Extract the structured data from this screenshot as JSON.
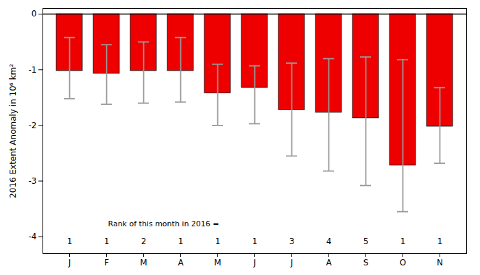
{
  "chart_data": {
    "type": "bar",
    "categories": [
      "J",
      "F",
      "M",
      "A",
      "M",
      "J",
      "J",
      "A",
      "S",
      "O",
      "N"
    ],
    "values": [
      -1.02,
      -1.07,
      -1.02,
      -1.02,
      -1.42,
      -1.32,
      -1.72,
      -1.77,
      -1.87,
      -2.72,
      -2.02
    ],
    "error_upper": [
      -0.42,
      -0.55,
      -0.5,
      -0.42,
      -0.9,
      -0.93,
      -0.88,
      -0.8,
      -0.77,
      -0.82,
      -1.32
    ],
    "error_lower": [
      -1.52,
      -1.62,
      -1.6,
      -1.58,
      -2.0,
      -1.97,
      -2.55,
      -2.82,
      -3.08,
      -3.55,
      -2.68
    ],
    "color": "#ee0000",
    "annotation": "Rank of this month in 2016 =",
    "ranks": [
      1,
      1,
      2,
      1,
      1,
      1,
      3,
      4,
      5,
      1,
      1
    ],
    "ylabel": "2016 Extent Anomaly in 10⁶ km²",
    "ylim": [
      -4.3,
      0.1
    ],
    "yticks": [
      0,
      -1,
      -2,
      -3,
      -4
    ],
    "grid": false
  }
}
